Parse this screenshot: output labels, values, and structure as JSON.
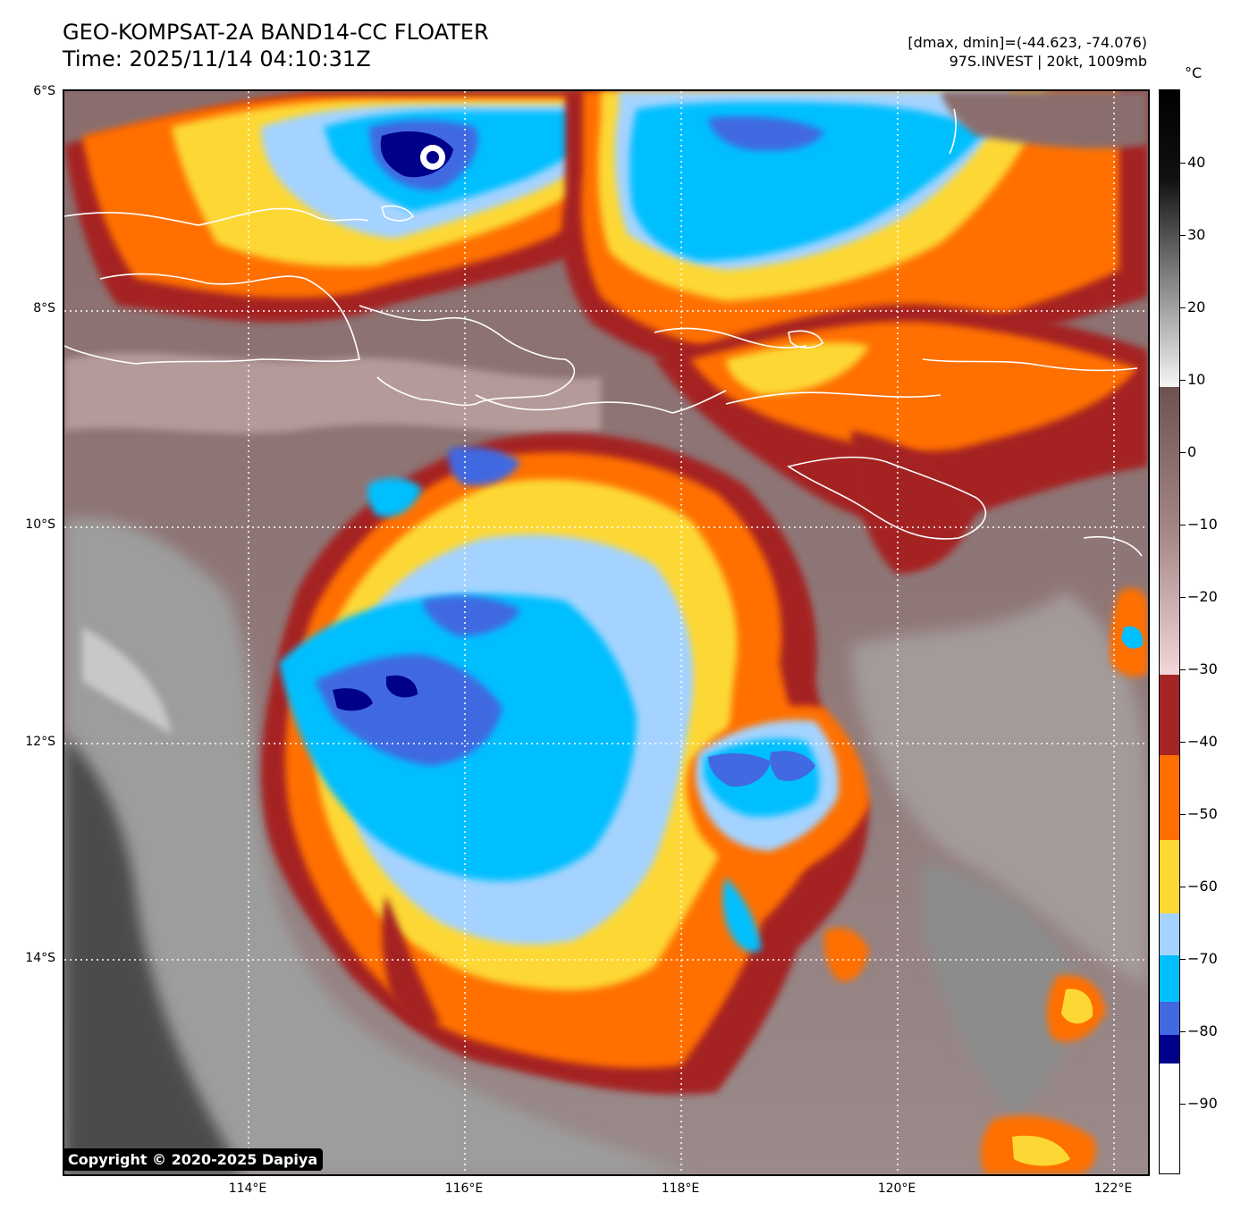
{
  "header": {
    "title_line1": "GEO-KOMPSAT-2A BAND14-CC FLOATER",
    "title_line2": "Time: 2025/11/14 04:10:31Z",
    "info_line1": "[dmax, dmin]=(-44.623, -74.076)",
    "info_line2": "97S.INVEST | 20kt, 1009mb"
  },
  "map": {
    "lat_labels": [
      "6°S",
      "8°S",
      "10°S",
      "12°S",
      "14°S"
    ],
    "lon_labels": [
      "114°E",
      "116°E",
      "118°E",
      "120°E",
      "122°E"
    ],
    "copyright": "Copyright © 2020-2025 Dapiya"
  },
  "colorbar": {
    "unit": "°C",
    "ticks": [
      "40",
      "30",
      "20",
      "10",
      "0",
      "−10",
      "−20",
      "−30",
      "−40",
      "−50",
      "−60",
      "−70",
      "−80",
      "−90"
    ],
    "colors": {
      "very_cold": "#00008b",
      "cold_blue": "#4169e1",
      "deep_sky": "#00bfff",
      "light_blue": "#a4d3ff",
      "yellow": "#fdd835",
      "orange": "#ff6f00",
      "dark_red": "#a52424",
      "pink": "#f2d6d9",
      "brown": "#6e5252",
      "gray_warm": "#4a4a4a"
    }
  }
}
